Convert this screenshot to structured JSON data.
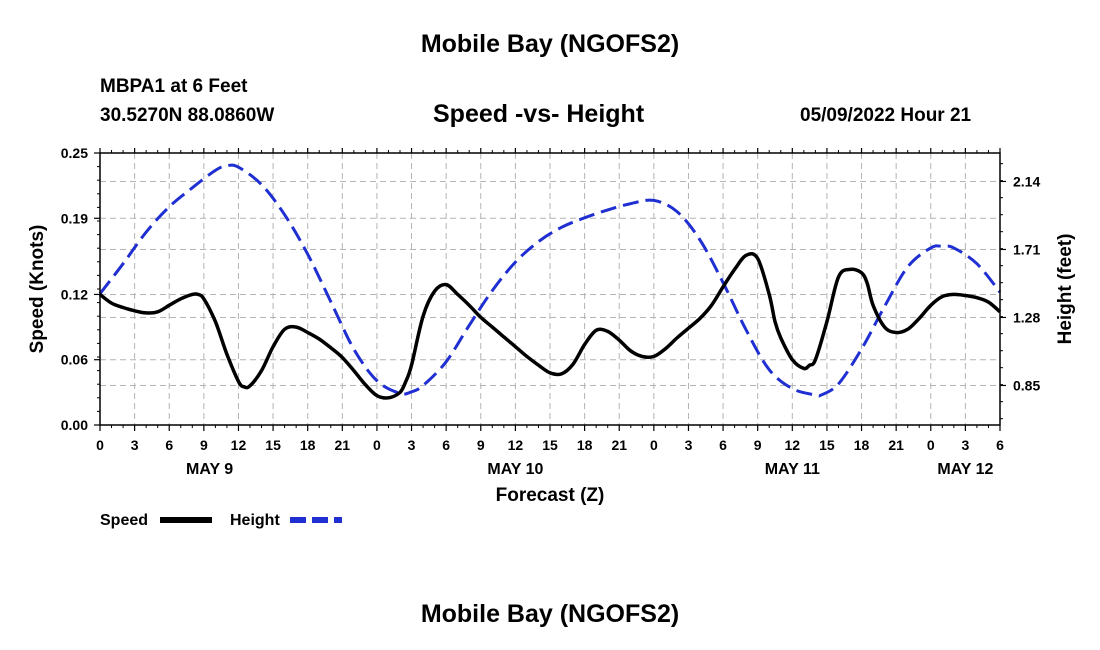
{
  "header": {
    "title": "Mobile Bay (NGOFS2)",
    "station": "MBPA1 at 6 Feet",
    "coords": "30.5270N  88.0860W",
    "subtitle": "Speed -vs- Height",
    "timestamp": "05/09/2022 Hour 21"
  },
  "footer": {
    "title": "Mobile Bay (NGOFS2)"
  },
  "chart_data": {
    "type": "line",
    "xlabel": "Forecast (Z)",
    "ylabel_left": "Speed (Knots)",
    "ylabel_right": "Height (feet)",
    "x_range_hours": [
      0,
      78
    ],
    "x_tick_labels": [
      "0",
      "3",
      "6",
      "9",
      "12",
      "15",
      "18",
      "21",
      "0",
      "3",
      "6",
      "9",
      "12",
      "15",
      "18",
      "21",
      "0",
      "3",
      "6",
      "9",
      "12",
      "15",
      "18",
      "21",
      "0",
      "3",
      "6"
    ],
    "day_labels": [
      {
        "text": "MAY 9",
        "hour": 9.5
      },
      {
        "text": "MAY 10",
        "hour": 36
      },
      {
        "text": "MAY 11",
        "hour": 60
      },
      {
        "text": "MAY 12",
        "hour": 75
      }
    ],
    "y_left": {
      "range": [
        0,
        0.25
      ],
      "ticks": [
        0.0,
        0.06,
        0.12,
        0.19,
        0.25
      ],
      "tick_labels": [
        "0.00",
        "0.06",
        "0.12",
        "0.19",
        "0.25"
      ]
    },
    "y_right": {
      "range": [
        0.6,
        2.32
      ],
      "ticks": [
        0.85,
        1.28,
        1.71,
        2.14
      ],
      "tick_labels": [
        "0.85",
        "1.28",
        "1.71",
        "2.14"
      ]
    },
    "series": [
      {
        "name": "Speed",
        "axis": "left",
        "color": "#000000",
        "dash": "solid",
        "x": [
          0,
          1,
          2,
          3,
          4,
          5,
          6,
          7,
          8,
          8.5,
          9,
          10,
          11,
          12,
          12.5,
          13,
          14,
          15,
          16,
          17,
          18,
          19,
          20,
          21,
          22,
          23,
          24,
          25,
          26,
          26.5,
          27,
          28,
          29,
          30,
          31,
          32,
          33,
          34,
          35,
          36,
          37,
          38,
          39,
          40,
          41,
          42,
          43,
          44,
          45,
          46,
          47,
          48,
          49,
          50,
          51,
          52,
          53,
          54,
          55,
          56,
          57,
          58,
          58.5,
          59,
          60,
          61,
          61.5,
          62,
          63,
          64,
          65,
          66,
          66.5,
          67,
          68,
          69,
          70,
          71,
          72,
          73,
          74,
          75,
          76,
          77,
          78
        ],
        "values": [
          0.12,
          0.112,
          0.108,
          0.105,
          0.103,
          0.104,
          0.11,
          0.116,
          0.12,
          0.12,
          0.116,
          0.095,
          0.065,
          0.04,
          0.035,
          0.036,
          0.05,
          0.072,
          0.088,
          0.09,
          0.085,
          0.079,
          0.071,
          0.062,
          0.05,
          0.037,
          0.027,
          0.025,
          0.03,
          0.04,
          0.055,
          0.1,
          0.123,
          0.129,
          0.12,
          0.11,
          0.099,
          0.09,
          0.081,
          0.072,
          0.063,
          0.055,
          0.048,
          0.047,
          0.056,
          0.074,
          0.087,
          0.086,
          0.078,
          0.068,
          0.063,
          0.063,
          0.07,
          0.08,
          0.089,
          0.098,
          0.11,
          0.127,
          0.143,
          0.156,
          0.153,
          0.12,
          0.095,
          0.08,
          0.06,
          0.052,
          0.055,
          0.06,
          0.095,
          0.136,
          0.143,
          0.14,
          0.13,
          0.11,
          0.09,
          0.085,
          0.088,
          0.098,
          0.11,
          0.118,
          0.12,
          0.119,
          0.117,
          0.113,
          0.104
        ]
      },
      {
        "name": "Height",
        "axis": "right",
        "color": "#1f2fd1",
        "dash": "dashed",
        "x": [
          0,
          2,
          4,
          6,
          8,
          10,
          11,
          12,
          14,
          16,
          18,
          20,
          22,
          24,
          26,
          27,
          28,
          30,
          32,
          34,
          36,
          38,
          40,
          42,
          44,
          46,
          48,
          50,
          52,
          54,
          56,
          58,
          60,
          62,
          62.5,
          64,
          66,
          68,
          70,
          72,
          73,
          74,
          76,
          78
        ],
        "values": [
          1.43,
          1.62,
          1.82,
          1.98,
          2.1,
          2.21,
          2.24,
          2.23,
          2.12,
          1.93,
          1.68,
          1.38,
          1.08,
          0.88,
          0.8,
          0.81,
          0.85,
          1.0,
          1.23,
          1.45,
          1.63,
          1.76,
          1.85,
          1.91,
          1.96,
          2.0,
          2.02,
          1.95,
          1.77,
          1.5,
          1.2,
          0.95,
          0.83,
          0.79,
          0.79,
          0.86,
          1.08,
          1.35,
          1.6,
          1.72,
          1.73,
          1.72,
          1.62,
          1.44
        ]
      }
    ]
  }
}
